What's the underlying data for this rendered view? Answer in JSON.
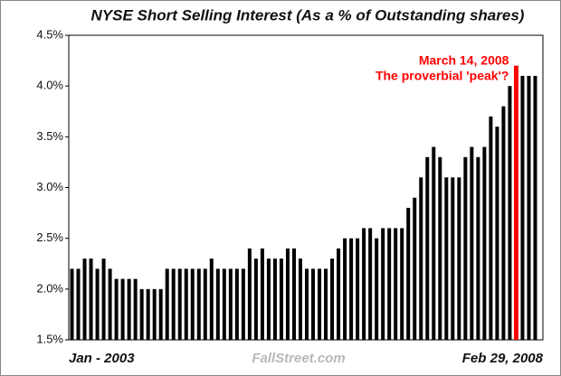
{
  "chart_data": {
    "type": "bar",
    "title": "NYSE Short Selling Interest (As a % of Outstanding shares)",
    "categories": [
      "Jan - 2003",
      null,
      null,
      null,
      null,
      null,
      null,
      null,
      null,
      null,
      null,
      null,
      null,
      null,
      null,
      null,
      null,
      null,
      null,
      null,
      null,
      null,
      null,
      null,
      null,
      null,
      null,
      null,
      null,
      null,
      null,
      null,
      null,
      null,
      null,
      null,
      null,
      null,
      null,
      null,
      null,
      null,
      null,
      null,
      null,
      null,
      null,
      null,
      null,
      null,
      null,
      null,
      null,
      null,
      null,
      null,
      null,
      null,
      null,
      null,
      null,
      null,
      null,
      null,
      null,
      null,
      null,
      null,
      null,
      null,
      null,
      null,
      null,
      "Feb 29, 2008"
    ],
    "values": [
      2.2,
      2.2,
      2.3,
      2.3,
      2.2,
      2.3,
      2.2,
      2.1,
      2.1,
      2.1,
      2.1,
      2.0,
      2.0,
      2.0,
      2.0,
      2.2,
      2.2,
      2.2,
      2.2,
      2.2,
      2.2,
      2.2,
      2.3,
      2.2,
      2.2,
      2.2,
      2.2,
      2.2,
      2.4,
      2.3,
      2.4,
      2.3,
      2.3,
      2.3,
      2.4,
      2.4,
      2.3,
      2.2,
      2.2,
      2.2,
      2.2,
      2.3,
      2.4,
      2.5,
      2.5,
      2.5,
      2.6,
      2.6,
      2.5,
      2.6,
      2.6,
      2.6,
      2.6,
      2.8,
      2.9,
      3.1,
      3.3,
      3.4,
      3.3,
      3.1,
      3.1,
      3.1,
      3.3,
      3.4,
      3.3,
      3.4,
      3.7,
      3.6,
      3.8,
      4.0,
      4.2,
      4.1,
      4.1,
      4.1
    ],
    "color": "#000000",
    "highlight": {
      "index": 70,
      "color": "#ff0000",
      "annotation": [
        "March 14, 2008",
        "The proverbial 'peak'?"
      ]
    },
    "watermark": "FallStreet.com",
    "ylim": [
      1.5,
      4.5
    ],
    "yticks": [
      {
        "value": 1.5,
        "label": "1.5%"
      },
      {
        "value": 2.0,
        "label": "2.0%"
      },
      {
        "value": 2.5,
        "label": "2.5%"
      },
      {
        "value": 3.0,
        "label": "3.0%"
      },
      {
        "value": 3.5,
        "label": "3.5%"
      },
      {
        "value": 4.0,
        "label": "4.0%"
      },
      {
        "value": 4.5,
        "label": "4.5%"
      }
    ],
    "grid": false
  }
}
